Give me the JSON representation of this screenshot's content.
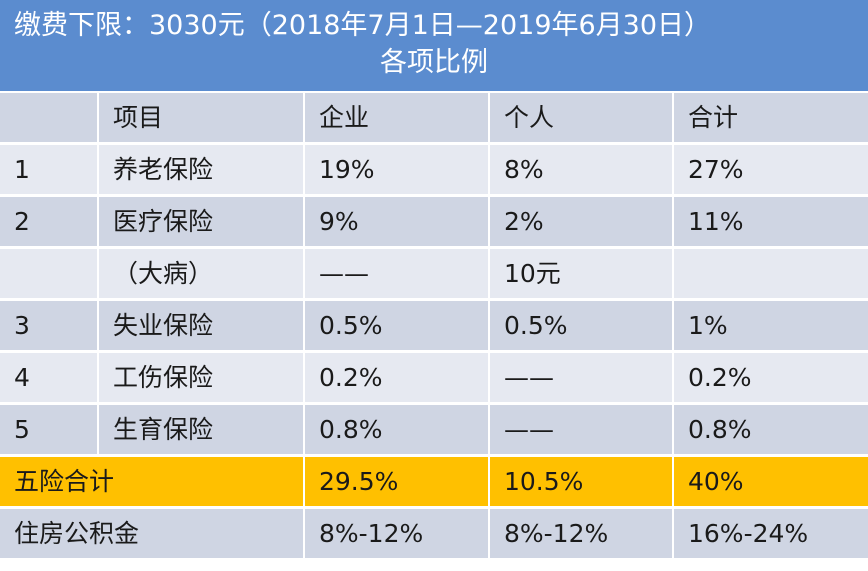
{
  "header": {
    "title": "缴费下限：3030元（2018年7月1日—2019年6月30日）",
    "subtitle": "各项比例"
  },
  "table": {
    "columns": [
      "",
      "项目",
      "企业",
      "个人",
      "合计"
    ],
    "rows": [
      [
        "1",
        "养老保险",
        "19%",
        "8%",
        "27%"
      ],
      [
        "2",
        "医疗保险",
        "9%",
        "2%",
        "11%"
      ],
      [
        "",
        "（大病）",
        "——",
        "10元",
        ""
      ],
      [
        "3",
        "失业保险",
        "0.5%",
        "0.5%",
        "1%"
      ],
      [
        "4",
        "工伤保险",
        "0.2%",
        "——",
        "0.2%"
      ],
      [
        "5",
        "生育保险",
        "0.8%",
        "——",
        "0.8%"
      ]
    ],
    "summary_rows": [
      [
        "五险合计",
        "29.5%",
        "10.5%",
        "40%"
      ],
      [
        "住房公积金",
        "8%-12%",
        "8%-12%",
        "16%-24%"
      ]
    ]
  },
  "colors": {
    "header_bg": "#5b8ccf",
    "row_dark": "#cfd5e3",
    "row_light": "#e6e9f1",
    "highlight": "#ffc000"
  }
}
